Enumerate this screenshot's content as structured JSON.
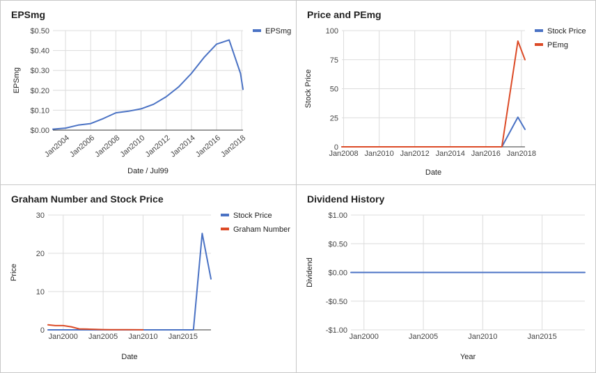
{
  "chart_data": [
    {
      "id": "epsmg",
      "type": "line",
      "title": "EPSmg",
      "xlabel": "Date / Jul99",
      "ylabel": "EPSmg",
      "x_ticks": [
        "Jan2004",
        "Jan2006",
        "Jan2008",
        "Jan2010",
        "Jan2012",
        "Jan2014",
        "Jan2016",
        "Jan2018"
      ],
      "x_tick_values": [
        2004,
        2006,
        2008,
        2010,
        2012,
        2014,
        2016,
        2018
      ],
      "y_ticks": [
        "$0.00",
        "$0.10",
        "$0.20",
        "$0.30",
        "$0.40",
        "$0.50"
      ],
      "y_tick_values": [
        0,
        0.1,
        0.2,
        0.3,
        0.4,
        0.5
      ],
      "xlim": [
        2003,
        2018.1
      ],
      "ylim": [
        0,
        0.5
      ],
      "grid": true,
      "legend_position": "top-right",
      "series": [
        {
          "name": "EPSmg",
          "color": "#4a72c4",
          "x": [
            2003,
            2004,
            2005,
            2006,
            2007,
            2008,
            2009,
            2010,
            2011,
            2012,
            2013,
            2014,
            2015,
            2016,
            2017,
            2017.9,
            2018.1
          ],
          "y": [
            0.005,
            0.01,
            0.025,
            0.033,
            0.058,
            0.087,
            0.095,
            0.107,
            0.13,
            0.168,
            0.218,
            0.285,
            0.365,
            0.432,
            0.453,
            0.285,
            0.205
          ]
        }
      ]
    },
    {
      "id": "price-pemg",
      "type": "line",
      "title": "Price and PEmg",
      "xlabel": "Date",
      "ylabel": "Stock Price",
      "x_ticks": [
        "Jan2008",
        "Jan2010",
        "Jan2012",
        "Jan2014",
        "Jan2016",
        "Jan2018"
      ],
      "x_tick_values": [
        2008,
        2010,
        2012,
        2014,
        2016,
        2018
      ],
      "y_ticks": [
        "0",
        "25",
        "50",
        "75",
        "100"
      ],
      "y_tick_values": [
        0,
        25,
        50,
        75,
        100
      ],
      "xlim": [
        2007.9,
        2018.2
      ],
      "ylim": [
        0,
        100
      ],
      "grid": true,
      "legend_position": "top-right",
      "series": [
        {
          "name": "Stock Price",
          "color": "#4a72c4",
          "x": [
            2007.9,
            2016.9,
            2017.8,
            2018.2
          ],
          "y": [
            0,
            0,
            25.5,
            15
          ]
        },
        {
          "name": "PEmg",
          "color": "#dc4a26",
          "x": [
            2007.9,
            2016.9,
            2017.8,
            2018.2
          ],
          "y": [
            0,
            0,
            91,
            75
          ]
        }
      ]
    },
    {
      "id": "graham",
      "type": "line",
      "title": "Graham Number and Stock Price",
      "xlabel": "Date",
      "ylabel": "Price",
      "x_ticks": [
        "Jan2000",
        "Jan2005",
        "Jan2010",
        "Jan2015"
      ],
      "x_tick_values": [
        2000,
        2005,
        2010,
        2015
      ],
      "y_ticks": [
        "0",
        "10",
        "20",
        "30"
      ],
      "y_tick_values": [
        0,
        10,
        20,
        30
      ],
      "xlim": [
        1998.1,
        2018.5
      ],
      "ylim": [
        0,
        30
      ],
      "grid": true,
      "legend_position": "top-right",
      "series": [
        {
          "name": "Stock Price",
          "color": "#4a72c4",
          "x": [
            1998.1,
            2016.3,
            2017.4,
            2018.5
          ],
          "y": [
            0,
            0,
            25.2,
            13.3
          ]
        },
        {
          "name": "Graham Number",
          "color": "#dc4a26",
          "x": [
            1998.1,
            1999,
            2000,
            2001,
            2002,
            2003,
            2004,
            2005,
            2006,
            2008,
            2010
          ],
          "y": [
            1.3,
            1.1,
            1.1,
            0.8,
            0.25,
            0.2,
            0.12,
            0.08,
            0.05,
            0.03,
            0.02
          ]
        }
      ]
    },
    {
      "id": "dividend",
      "type": "line",
      "title": "Dividend History",
      "xlabel": "Year",
      "ylabel": "Dividend",
      "x_ticks": [
        "Jan2000",
        "Jan2005",
        "Jan2010",
        "Jan2015"
      ],
      "x_tick_values": [
        2000,
        2005,
        2010,
        2015
      ],
      "y_ticks": [
        "-$1.00",
        "-$0.50",
        "$0.00",
        "$0.50",
        "$1.00"
      ],
      "y_tick_values": [
        -1,
        -0.5,
        0,
        0.5,
        1
      ],
      "xlim": [
        1998.9,
        2018.6
      ],
      "ylim": [
        -1,
        1
      ],
      "grid": true,
      "legend_position": "none",
      "series": [
        {
          "color": "#4a72c4",
          "x": [
            1998.9,
            2018.6
          ],
          "y": [
            0,
            0
          ]
        }
      ]
    }
  ]
}
